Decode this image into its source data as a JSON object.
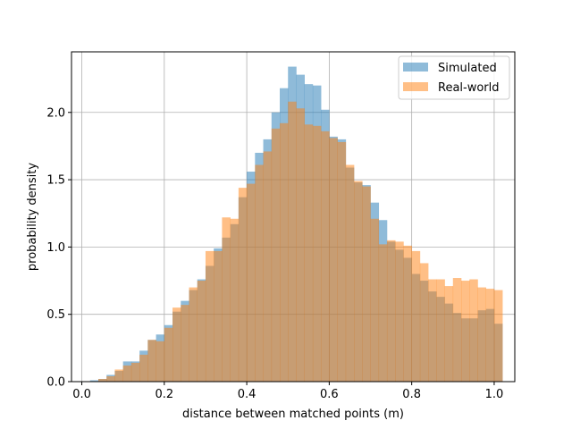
{
  "chart_data": {
    "type": "histogram",
    "xlabel": "distance between matched points (m)",
    "ylabel": "probability density",
    "xlim": [
      -0.025,
      1.05
    ],
    "ylim": [
      0,
      2.45
    ],
    "grid": true,
    "legend_position": "top-right",
    "x_ticks": [
      0.0,
      0.2,
      0.4,
      0.6,
      0.8,
      1.0
    ],
    "x_tick_labels": [
      "0.0",
      "0.2",
      "0.4",
      "0.6",
      "0.8",
      "1.0"
    ],
    "y_ticks": [
      0.0,
      0.5,
      1.0,
      1.5,
      2.0
    ],
    "y_tick_labels": [
      "0.0",
      "0.5",
      "1.0",
      "1.5",
      "2.0"
    ],
    "bin_start": 0.0,
    "bin_width": 0.02,
    "series": [
      {
        "name": "Simulated",
        "color": "#1f77b4",
        "opacity": 0.5,
        "values": [
          0.0,
          0.01,
          0.02,
          0.05,
          0.08,
          0.15,
          0.15,
          0.23,
          0.31,
          0.35,
          0.42,
          0.52,
          0.6,
          0.68,
          0.76,
          0.86,
          0.99,
          1.07,
          1.17,
          1.37,
          1.56,
          1.7,
          1.8,
          2.0,
          2.18,
          2.34,
          2.28,
          2.21,
          2.2,
          2.02,
          1.82,
          1.8,
          1.59,
          1.48,
          1.46,
          1.33,
          1.2,
          1.04,
          0.98,
          0.92,
          0.8,
          0.75,
          0.67,
          0.63,
          0.58,
          0.51,
          0.47,
          0.47,
          0.53,
          0.54,
          0.43
        ]
      },
      {
        "name": "Real-world",
        "color": "#ff7f0e",
        "opacity": 0.5,
        "values": [
          0.0,
          0.0,
          0.02,
          0.04,
          0.09,
          0.12,
          0.14,
          0.2,
          0.31,
          0.3,
          0.4,
          0.55,
          0.57,
          0.7,
          0.75,
          0.97,
          0.97,
          1.22,
          1.21,
          1.44,
          1.47,
          1.61,
          1.71,
          1.88,
          1.92,
          2.08,
          2.03,
          1.91,
          1.9,
          1.86,
          1.81,
          1.78,
          1.61,
          1.49,
          1.45,
          1.21,
          1.02,
          1.05,
          1.04,
          1.01,
          0.97,
          0.88,
          0.76,
          0.76,
          0.71,
          0.77,
          0.75,
          0.76,
          0.7,
          0.69,
          0.68
        ]
      }
    ]
  }
}
